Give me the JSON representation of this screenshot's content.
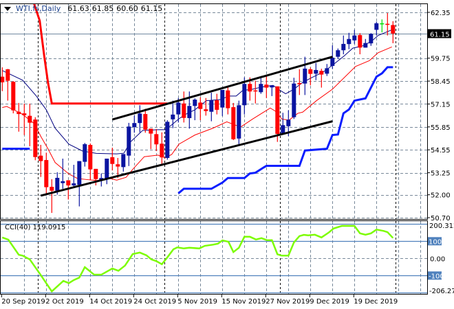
{
  "header": {
    "symbol": "WTI.fs,Daily",
    "open": "61.63",
    "high": "61.85",
    "low": "60.60",
    "close": "61.15",
    "menu_icon": "triangle-down-icon"
  },
  "cci_label": "CCI(40) 119.0915",
  "colors": {
    "bull": "#0a14a0",
    "bear": "#ff0000",
    "doji": "#00e000",
    "ma_fast": "#000080",
    "ma_slow": "#ff0000",
    "stop_blue": "#0a1eff",
    "stop_red": "#ff0000",
    "trend": "#000000",
    "cci": "#7cfc00",
    "level": "#4f81bd",
    "grid": "#778899"
  },
  "chart_data": [
    {
      "type": "candlestick",
      "title": "WTI.fs,Daily",
      "ylim": [
        50.7,
        62.35
      ],
      "y_ticks": [
        "62.35",
        "59.75",
        "58.45",
        "57.15",
        "55.85",
        "54.55",
        "53.25",
        "52.00",
        "50.70"
      ],
      "current_price": "61.15",
      "x_ticks": [
        {
          "bar": 0,
          "label": "20 Sep 2019"
        },
        {
          "bar": 8,
          "label": "2 Oct 2019"
        },
        {
          "bar": 16,
          "label": "14 Oct 2019"
        },
        {
          "bar": 24,
          "label": "24 Oct 2019"
        },
        {
          "bar": 32,
          "label": "5 Nov 2019"
        },
        {
          "bar": 40,
          "label": "15 Nov 2019"
        },
        {
          "bar": 48,
          "label": "27 Nov 2019"
        },
        {
          "bar": 56,
          "label": "9 Dec 2019"
        },
        {
          "bar": 64,
          "label": "19 Dec 2019"
        }
      ],
      "period_separators": [
        7,
        30,
        51,
        72
      ],
      "ohlc": [
        [
          58.7,
          59.23,
          57.88,
          58.38
        ],
        [
          59.12,
          59.14,
          57.34,
          58.47
        ],
        [
          58.41,
          58.45,
          56.62,
          56.79
        ],
        [
          56.71,
          57.21,
          55.58,
          56.58
        ],
        [
          56.62,
          57.17,
          55.39,
          56.51
        ],
        [
          56.48,
          57.17,
          54.75,
          56.09
        ],
        [
          56.27,
          56.4,
          53.96,
          54.14
        ],
        [
          54.22,
          54.83,
          53.01,
          53.91
        ],
        [
          53.97,
          54.39,
          52.08,
          52.43
        ],
        [
          52.45,
          52.88,
          50.97,
          52.23
        ],
        [
          52.23,
          53.28,
          52.01,
          52.96
        ],
        [
          52.66,
          54.05,
          52.34,
          52.77
        ],
        [
          52.82,
          52.83,
          51.73,
          52.53
        ],
        [
          52.53,
          53.7,
          52.42,
          52.65
        ],
        [
          52.56,
          53.91,
          51.34,
          53.91
        ],
        [
          53.87,
          54.94,
          53.6,
          54.87
        ],
        [
          54.83,
          54.91,
          52.82,
          53.44
        ],
        [
          53.47,
          53.47,
          52.53,
          52.89
        ],
        [
          52.83,
          53.21,
          52.47,
          52.95
        ],
        [
          52.88,
          54.05,
          52.6,
          54.05
        ],
        [
          54.13,
          54.67,
          53.38,
          53.75
        ],
        [
          53.73,
          54.09,
          52.95,
          53.6
        ],
        [
          53.57,
          54.31,
          53.31,
          54.31
        ],
        [
          54.22,
          56.08,
          53.63,
          55.87
        ],
        [
          55.84,
          56.49,
          55.52,
          56.07
        ],
        [
          56.07,
          57.08,
          55.54,
          56.61
        ],
        [
          56.58,
          56.88,
          55.52,
          55.7
        ],
        [
          55.75,
          55.75,
          54.59,
          55.47
        ],
        [
          55.44,
          55.73,
          54.48,
          54.86
        ],
        [
          54.9,
          55.54,
          53.7,
          54.12
        ],
        [
          54.09,
          56.23,
          53.99,
          56.14
        ],
        [
          56.28,
          57.34,
          55.78,
          56.55
        ],
        [
          56.56,
          57.49,
          56.1,
          57.23
        ],
        [
          57.18,
          57.86,
          56.1,
          56.36
        ],
        [
          56.35,
          57.86,
          55.75,
          57.04
        ],
        [
          57.04,
          57.47,
          56.23,
          57.4
        ],
        [
          57.23,
          57.53,
          56.23,
          56.87
        ],
        [
          56.85,
          57.49,
          56.49,
          56.75
        ],
        [
          56.71,
          57.79,
          56.17,
          57.35
        ],
        [
          57.36,
          57.73,
          56.56,
          56.82
        ],
        [
          56.95,
          57.95,
          56.47,
          57.95
        ],
        [
          57.92,
          58.14,
          56.56,
          56.91
        ],
        [
          56.97,
          57.21,
          55.1,
          55.15
        ],
        [
          55.19,
          57.34,
          54.8,
          57.08
        ],
        [
          57.08,
          58.66,
          56.56,
          58.29
        ],
        [
          58.29,
          58.66,
          57.34,
          57.86
        ],
        [
          57.92,
          58.47,
          57.18,
          57.88
        ],
        [
          57.82,
          58.64,
          57.73,
          58.29
        ],
        [
          58.25,
          58.77,
          57.49,
          58.08
        ],
        [
          58.09,
          58.21,
          57.6,
          58.21
        ],
        [
          58.15,
          58.15,
          55.0,
          55.45
        ],
        [
          55.45,
          56.65,
          55.45,
          55.95
        ],
        [
          55.89,
          56.79,
          55.33,
          56.26
        ],
        [
          56.4,
          58.64,
          56.3,
          58.31
        ],
        [
          58.34,
          59.12,
          57.66,
          58.27
        ],
        [
          58.31,
          59.83,
          57.66,
          59.16
        ],
        [
          59.12,
          59.22,
          58.21,
          58.86
        ],
        [
          58.87,
          59.48,
          58.5,
          59.08
        ],
        [
          59.03,
          59.15,
          58.08,
          58.82
        ],
        [
          58.87,
          59.42,
          58.74,
          59.18
        ],
        [
          59.31,
          60.48,
          59.15,
          59.78
        ],
        [
          59.83,
          60.3,
          59.7,
          60.2
        ],
        [
          60.2,
          61.04,
          59.97,
          60.56
        ],
        [
          60.55,
          61.19,
          60.26,
          60.84
        ],
        [
          60.76,
          61.36,
          60.56,
          61.04
        ],
        [
          61.06,
          61.17,
          59.97,
          60.35
        ],
        [
          60.35,
          60.84,
          60.35,
          60.61
        ],
        [
          60.59,
          61.17,
          60.45,
          61.13
        ],
        [
          61.36,
          61.82,
          61.04,
          61.73
        ],
        [
          61.7,
          61.95,
          61.21,
          61.7
        ],
        [
          61.7,
          62.31,
          61.04,
          61.65
        ],
        [
          61.63,
          61.85,
          60.6,
          61.15
        ]
      ],
      "ma_fast": [
        [
          0,
          59.05
        ],
        [
          3.7,
          58.5
        ],
        [
          6.2,
          57.6
        ],
        [
          8,
          56.82
        ],
        [
          9.6,
          55.78
        ],
        [
          12.1,
          54.87
        ],
        [
          14.6,
          54.48
        ],
        [
          17.1,
          54.35
        ],
        [
          20.8,
          54.32
        ],
        [
          22.1,
          54.36
        ],
        [
          23.3,
          55.0
        ],
        [
          25.5,
          55.65
        ],
        [
          28.3,
          55.69
        ],
        [
          29.6,
          55.69
        ],
        [
          30.8,
          55.97
        ],
        [
          32.1,
          56.31
        ],
        [
          33.3,
          56.56
        ],
        [
          35,
          56.82
        ],
        [
          37.1,
          57.34
        ],
        [
          39.6,
          57.4
        ],
        [
          41.2,
          57.6
        ],
        [
          42.5,
          57.6
        ],
        [
          43.7,
          57.92
        ],
        [
          45.5,
          57.99
        ],
        [
          47.1,
          58.11
        ],
        [
          49.2,
          58.21
        ],
        [
          50.5,
          57.92
        ],
        [
          51.5,
          57.73
        ],
        [
          53,
          57.99
        ],
        [
          54.6,
          58.38
        ],
        [
          56.2,
          58.64
        ],
        [
          58.3,
          58.96
        ],
        [
          60,
          59.35
        ],
        [
          62.1,
          59.87
        ],
        [
          63.7,
          60.32
        ],
        [
          65.5,
          60.45
        ],
        [
          67.1,
          60.71
        ],
        [
          68.3,
          61.04
        ],
        [
          70.8,
          61.36
        ]
      ],
      "ma_slow": [
        [
          0,
          56.95
        ],
        [
          0.8,
          57.01
        ],
        [
          2.1,
          56.82
        ],
        [
          3.7,
          56.56
        ],
        [
          5.8,
          56.04
        ],
        [
          7.1,
          55.26
        ],
        [
          8.3,
          54.61
        ],
        [
          9.6,
          53.83
        ],
        [
          12.1,
          53.18
        ],
        [
          13.7,
          52.92
        ],
        [
          15.5,
          52.86
        ],
        [
          17.1,
          52.81
        ],
        [
          19.6,
          52.92
        ],
        [
          20.8,
          52.83
        ],
        [
          22.5,
          52.99
        ],
        [
          23.7,
          53.44
        ],
        [
          25.8,
          54.16
        ],
        [
          28.3,
          54.25
        ],
        [
          29.6,
          54.09
        ],
        [
          30.8,
          54.29
        ],
        [
          32.1,
          54.87
        ],
        [
          35,
          55.39
        ],
        [
          38.3,
          55.78
        ],
        [
          40.8,
          56.14
        ],
        [
          43.3,
          55.84
        ],
        [
          45.5,
          56.3
        ],
        [
          48.7,
          56.92
        ],
        [
          49.6,
          56.75
        ],
        [
          50.8,
          56.3
        ],
        [
          52.1,
          56.23
        ],
        [
          53.7,
          56.62
        ],
        [
          54.6,
          56.69
        ],
        [
          57.1,
          57.34
        ],
        [
          60,
          57.99
        ],
        [
          64.2,
          59.28
        ],
        [
          66.7,
          59.61
        ],
        [
          68.3,
          60.06
        ],
        [
          70.8,
          60.39
        ]
      ],
      "stop_blue": [
        [
          [
            0,
            54.61
          ],
          [
            5,
            54.61
          ]
        ],
        [
          [
            32,
            52.08
          ],
          [
            33,
            52.34
          ],
          [
            38,
            52.34
          ],
          [
            40,
            52.69
          ],
          [
            41,
            52.95
          ],
          [
            44,
            52.95
          ],
          [
            45,
            53.21
          ],
          [
            46,
            53.25
          ],
          [
            47.3,
            53.51
          ],
          [
            48,
            53.64
          ],
          [
            54,
            53.64
          ],
          [
            55,
            54.51
          ],
          [
            59,
            54.61
          ],
          [
            60,
            55.39
          ],
          [
            61,
            55.42
          ],
          [
            62,
            56.62
          ],
          [
            63,
            56.84
          ],
          [
            64,
            57.34
          ],
          [
            66,
            57.47
          ],
          [
            68,
            58.7
          ],
          [
            69,
            58.89
          ],
          [
            70,
            59.24
          ],
          [
            71,
            59.24
          ]
        ]
      ],
      "stop_red": [
        [
          5.8,
          62.86
        ],
        [
          6.8,
          61.88
        ],
        [
          7.6,
          59.93
        ],
        [
          8.3,
          58.38
        ],
        [
          9,
          57.18
        ],
        [
          30,
          57.18
        ]
      ],
      "trendlines": [
        {
          "name": "upper-channel",
          "from": [
            20,
            56.27
          ],
          "to": [
            60,
            59.83
          ]
        },
        {
          "name": "lower-channel",
          "from": [
            7,
            51.95
          ],
          "to": [
            60,
            56.17
          ]
        }
      ]
    },
    {
      "type": "line",
      "title": "CCI(40)",
      "value": "119.0915",
      "ylim": [
        -206.274,
        200.3126
      ],
      "y_ticks": [
        "100",
        "0.00",
        "-100"
      ],
      "y_max_label": "200.3126",
      "y_min_label": "-206.274",
      "levels": [
        200,
        100,
        -100,
        -200
      ],
      "points": [
        [
          0,
          122
        ],
        [
          1.1,
          109
        ],
        [
          3,
          21
        ],
        [
          3.7,
          16
        ],
        [
          5,
          -6
        ],
        [
          6.8,
          -88
        ],
        [
          9,
          -192
        ],
        [
          11.1,
          -131
        ],
        [
          12.1,
          -144
        ],
        [
          13,
          -126
        ],
        [
          14,
          -112
        ],
        [
          15,
          -51
        ],
        [
          16.7,
          -95
        ],
        [
          18,
          -95
        ],
        [
          20,
          -59
        ],
        [
          21.1,
          -72
        ],
        [
          22.3,
          -42
        ],
        [
          23.7,
          25
        ],
        [
          25,
          34
        ],
        [
          26.2,
          18
        ],
        [
          27.1,
          -6
        ],
        [
          28,
          -16
        ],
        [
          29,
          -34
        ],
        [
          30,
          6
        ],
        [
          31.1,
          53
        ],
        [
          31.8,
          64
        ],
        [
          33,
          58
        ],
        [
          34,
          62
        ],
        [
          35.8,
          58
        ],
        [
          36.8,
          73
        ],
        [
          38.3,
          80
        ],
        [
          39.2,
          86
        ],
        [
          40,
          105
        ],
        [
          41.1,
          97
        ],
        [
          42,
          37
        ],
        [
          43,
          62
        ],
        [
          44,
          126
        ],
        [
          45,
          126
        ],
        [
          46.1,
          110
        ],
        [
          47.1,
          118
        ],
        [
          48.1,
          106
        ],
        [
          49,
          106
        ],
        [
          50,
          24
        ],
        [
          50.8,
          16
        ],
        [
          52,
          16
        ],
        [
          53,
          93
        ],
        [
          54,
          130
        ],
        [
          54.8,
          137
        ],
        [
          55.6,
          134
        ],
        [
          56.8,
          138
        ],
        [
          58,
          122
        ],
        [
          59.3,
          150
        ],
        [
          60.2,
          174
        ],
        [
          61.7,
          189
        ],
        [
          64,
          189
        ],
        [
          65,
          146
        ],
        [
          66,
          138
        ],
        [
          67,
          146
        ],
        [
          68,
          168
        ],
        [
          69.3,
          160
        ],
        [
          70,
          153
        ],
        [
          71,
          119
        ]
      ]
    }
  ]
}
